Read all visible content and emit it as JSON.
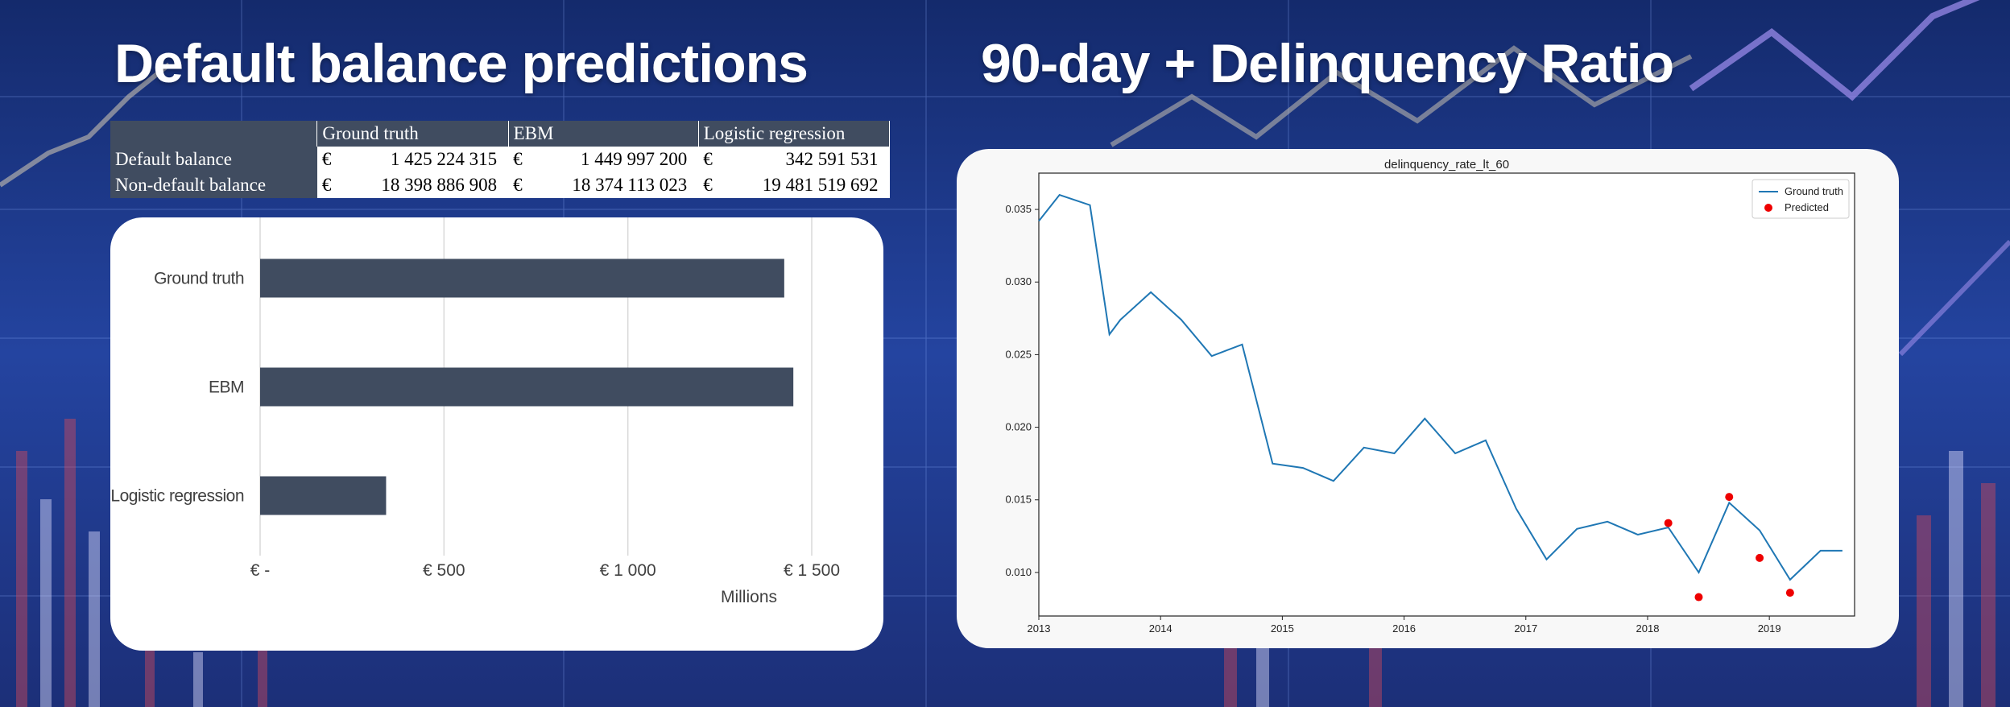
{
  "titles": {
    "left": "Default balance predictions",
    "right": "90-day + Delinquency Ratio"
  },
  "table": {
    "headers": [
      "",
      "Ground truth",
      "EBM",
      "Logistic regression"
    ],
    "rows": [
      {
        "label": "Default balance",
        "cells": [
          {
            "currency": "€",
            "value": "1 425 224 315"
          },
          {
            "currency": "€",
            "value": "1 449 997 200"
          },
          {
            "currency": "€",
            "value": "342 591 531"
          }
        ]
      },
      {
        "label": "Non-default balance",
        "cells": [
          {
            "currency": "€",
            "value": "18 398 886 908"
          },
          {
            "currency": "€",
            "value": "18 374 113 023"
          },
          {
            "currency": "€",
            "value": "19 481 519 692"
          }
        ]
      }
    ]
  },
  "chart_data": [
    {
      "type": "bar",
      "orientation": "horizontal",
      "title": "",
      "categories": [
        "Ground truth",
        "EBM",
        "Logistic regression"
      ],
      "values": [
        1425.224315,
        1449.9972,
        342.591531
      ],
      "xlabel": "Millions",
      "ylabel": "",
      "xlim": [
        0,
        1500
      ],
      "xticks": [
        0,
        500,
        1000,
        1500
      ],
      "xtick_labels": [
        "€ -",
        "€ 500",
        "€ 1 000",
        "€ 1 500"
      ],
      "grid": "vertical",
      "color": "#404c60"
    },
    {
      "type": "line",
      "title": "delinquency_rate_lt_60",
      "xlabel": "",
      "ylabel": "",
      "xlim": [
        2013,
        2019.7
      ],
      "ylim": [
        0.007,
        0.0375
      ],
      "xticks": [
        2013,
        2014,
        2015,
        2016,
        2017,
        2018,
        2019
      ],
      "yticks": [
        0.01,
        0.015,
        0.02,
        0.025,
        0.03,
        0.035
      ],
      "ytick_labels": [
        "0.010",
        "0.015",
        "0.020",
        "0.025",
        "0.030",
        "0.035"
      ],
      "grid": false,
      "legend": "top-right",
      "series": [
        {
          "name": "Ground truth",
          "kind": "line",
          "color": "#1f77b4",
          "x": [
            2013.0,
            2013.17,
            2013.42,
            2013.58,
            2013.67,
            2013.92,
            2014.17,
            2014.42,
            2014.67,
            2014.92,
            2015.17,
            2015.42,
            2015.67,
            2015.92,
            2016.17,
            2016.42,
            2016.67,
            2016.92,
            2017.17,
            2017.42,
            2017.67,
            2017.92,
            2018.17,
            2018.42,
            2018.67,
            2018.92,
            2019.17,
            2019.42,
            2019.6
          ],
          "y": [
            0.0342,
            0.036,
            0.0353,
            0.0264,
            0.0274,
            0.0293,
            0.0274,
            0.0249,
            0.0257,
            0.0175,
            0.0172,
            0.0163,
            0.0186,
            0.0182,
            0.0206,
            0.0182,
            0.0191,
            0.0144,
            0.0109,
            0.013,
            0.0135,
            0.0126,
            0.0131,
            0.01,
            0.0148,
            0.0129,
            0.0095,
            0.0115,
            0.0115
          ]
        },
        {
          "name": "Predicted",
          "kind": "scatter",
          "color": "#ee0000",
          "x": [
            2018.17,
            2018.42,
            2018.67,
            2018.92,
            2019.17
          ],
          "y": [
            0.0134,
            0.0083,
            0.0152,
            0.011,
            0.0086
          ]
        }
      ]
    }
  ]
}
